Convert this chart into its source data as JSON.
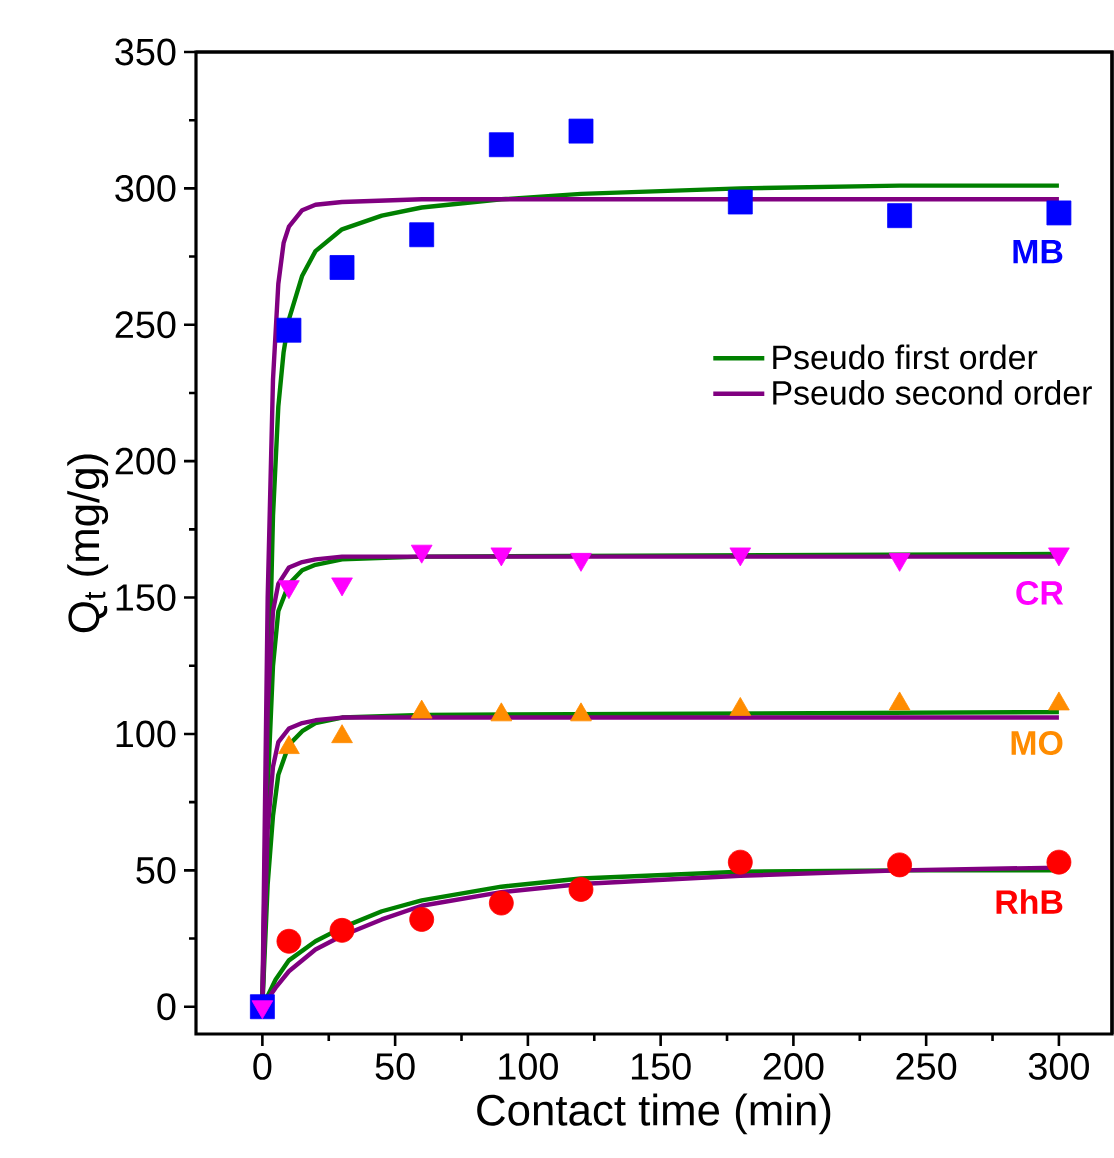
{
  "chart_data": {
    "type": "scatter",
    "xlabel": "Contact time (min)",
    "ylabel": "Q$_{t}$ (mg/g)",
    "xlim": [
      -25,
      320
    ],
    "ylim": [
      -10,
      350
    ],
    "xticks": [
      0,
      50,
      100,
      150,
      200,
      250,
      300
    ],
    "yticks": [
      0,
      50,
      100,
      150,
      200,
      250,
      300,
      350
    ],
    "legend": "right",
    "series": [
      {
        "name": "MB",
        "marker": "square",
        "color": "#0000ff",
        "x": [
          0,
          10,
          30,
          60,
          90,
          120,
          180,
          240,
          300
        ],
        "values": [
          0,
          248,
          271,
          283,
          316,
          321,
          295,
          290,
          291
        ]
      },
      {
        "name": "CR",
        "marker": "triangle down",
        "color": "#ff00ff",
        "x": [
          0,
          10,
          30,
          60,
          90,
          120,
          180,
          240,
          300
        ],
        "values": [
          0,
          154,
          155,
          167,
          166,
          164,
          166,
          164,
          166
        ]
      },
      {
        "name": "MO",
        "marker": "triangle",
        "color": "#ff8c00",
        "x": [
          10,
          30,
          60,
          90,
          120,
          180,
          240,
          300
        ],
        "values": [
          95,
          99,
          108,
          107,
          107,
          109,
          111,
          111
        ]
      },
      {
        "name": "RhB",
        "marker": "circle",
        "color": "#ff0000",
        "x": [
          10,
          30,
          60,
          90,
          120,
          180,
          240,
          300
        ],
        "values": [
          24,
          28,
          32,
          38,
          43,
          53,
          52,
          53
        ]
      },
      {
        "name": "Pseudo first order",
        "type": "line",
        "color": "#008000",
        "x": [
          0,
          2,
          4,
          6,
          8,
          10,
          15,
          20,
          30,
          45,
          60,
          90,
          120,
          180,
          240,
          300
        ],
        "values": [
          0,
          100,
          180,
          220,
          240,
          252,
          268,
          277,
          285,
          290,
          293,
          296,
          298,
          300,
          301,
          301
        ]
      },
      {
        "name": "Pseudo second order",
        "type": "line",
        "color": "#800080",
        "x": [
          0,
          2,
          4,
          6,
          8,
          10,
          15,
          20,
          30,
          60,
          300
        ],
        "values": [
          0,
          150,
          230,
          265,
          280,
          286,
          292,
          294,
          295,
          296,
          296
        ]
      },
      {
        "type": "line",
        "color": "#008000",
        "x": [
          0,
          2,
          4,
          6,
          10,
          15,
          20,
          30,
          60,
          300
        ],
        "values": [
          0,
          80,
          125,
          145,
          155,
          160,
          162,
          164,
          165,
          166
        ]
      },
      {
        "type": "line",
        "color": "#800080",
        "x": [
          0,
          2,
          4,
          6,
          10,
          15,
          20,
          30,
          300
        ],
        "values": [
          0,
          110,
          145,
          155,
          161,
          163,
          164,
          165,
          165
        ]
      },
      {
        "type": "line",
        "color": "#008000",
        "x": [
          0,
          2,
          4,
          6,
          10,
          15,
          20,
          30,
          60,
          300
        ],
        "values": [
          0,
          45,
          70,
          85,
          96,
          101,
          104,
          106,
          107,
          108
        ]
      },
      {
        "type": "line",
        "color": "#800080",
        "x": [
          0,
          2,
          4,
          6,
          10,
          15,
          20,
          30,
          300
        ],
        "values": [
          0,
          65,
          88,
          97,
          102,
          104,
          105,
          106,
          106
        ]
      },
      {
        "type": "line",
        "color": "#008000",
        "x": [
          0,
          5,
          10,
          20,
          30,
          45,
          60,
          90,
          120,
          180,
          240,
          300
        ],
        "values": [
          0,
          10,
          17,
          24,
          29,
          35,
          39,
          44,
          47,
          49.5,
          50,
          50
        ]
      },
      {
        "type": "line",
        "color": "#800080",
        "x": [
          0,
          5,
          10,
          20,
          30,
          45,
          60,
          90,
          120,
          180,
          240,
          300
        ],
        "values": [
          0,
          7,
          13,
          21,
          26,
          32,
          37,
          42,
          45,
          48,
          50,
          51
        ]
      }
    ]
  }
}
